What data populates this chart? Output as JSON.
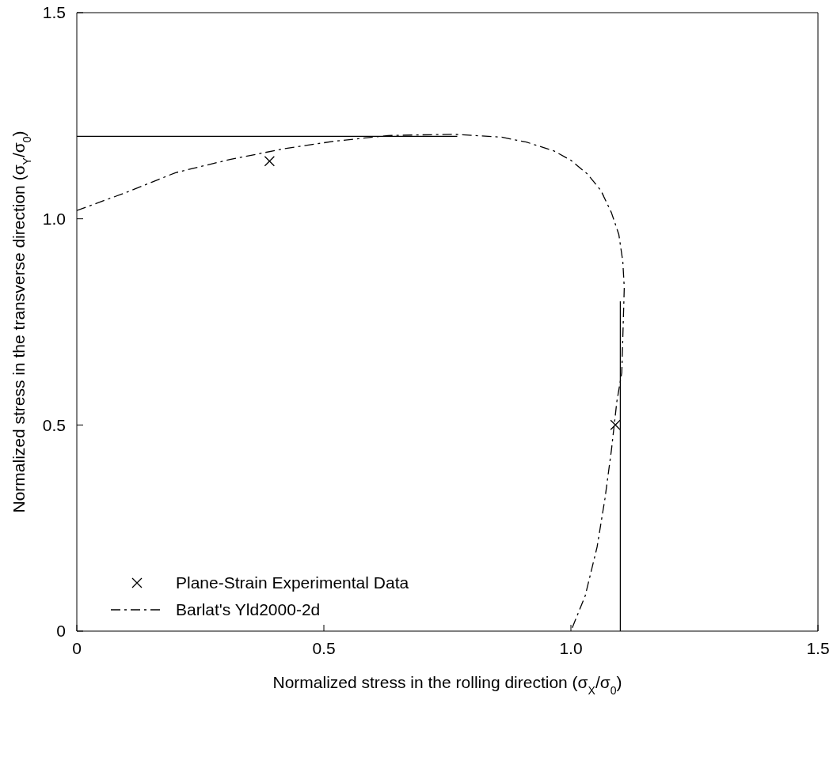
{
  "chart_data": {
    "type": "line",
    "xlabel": "Normalized stress in the rolling direction (σ$_{X}$/σ$_{0}$)",
    "ylabel": "Normalized stress in the transverse direction (σ$_{Y}$/σ$_{0}$)",
    "xlim": [
      0,
      1.5
    ],
    "ylim": [
      0,
      1.5
    ],
    "xticks": [
      0,
      0.5,
      {
        "value": 1,
        "label": "1.0"
      },
      1.5
    ],
    "yticks": [
      0,
      0.5,
      {
        "value": 1,
        "label": "1.0"
      },
      1.5
    ],
    "grid": false,
    "legend": "bottom left",
    "series": [
      {
        "name": "Plane-Strain Experimental Data",
        "type": "scatter",
        "color": "#000000",
        "marker": "cross",
        "x": [
          0.39,
          1.09
        ],
        "values": [
          1.14,
          0.5
        ]
      },
      {
        "name": "Barlat's Yld2000-2d",
        "type": "line",
        "color": "#000000",
        "line_style": "dashed",
        "marker": "none",
        "x": [
          0,
          0.1,
          0.2,
          0.31,
          0.42,
          0.52,
          0.63,
          0.76,
          0.78,
          0.86,
          0.91,
          0.965,
          1.0,
          1.034,
          1.061,
          1.082,
          1.097,
          1.105,
          1.108,
          1.103,
          1.093,
          1.082,
          1.069,
          1.053,
          1.029,
          1.0
        ],
        "values": [
          1.02,
          1.064,
          1.112,
          1.144,
          1.17,
          1.188,
          1.202,
          1.205,
          1.204,
          1.198,
          1.186,
          1.165,
          1.142,
          1.108,
          1.068,
          1.015,
          0.962,
          0.897,
          0.833,
          0.627,
          0.557,
          0.439,
          0.322,
          0.204,
          0.086,
          0
        ]
      },
      {
        "type": "line",
        "color": "#000000",
        "line_style": "solid",
        "marker": "none",
        "x": [
          0,
          0.77
        ],
        "values": [
          1.2,
          1.2
        ]
      },
      {
        "type": "line",
        "color": "#000000",
        "line_style": "solid",
        "marker": "none",
        "x": [
          1.1,
          1.1
        ],
        "values": [
          0,
          0.8
        ]
      }
    ]
  }
}
